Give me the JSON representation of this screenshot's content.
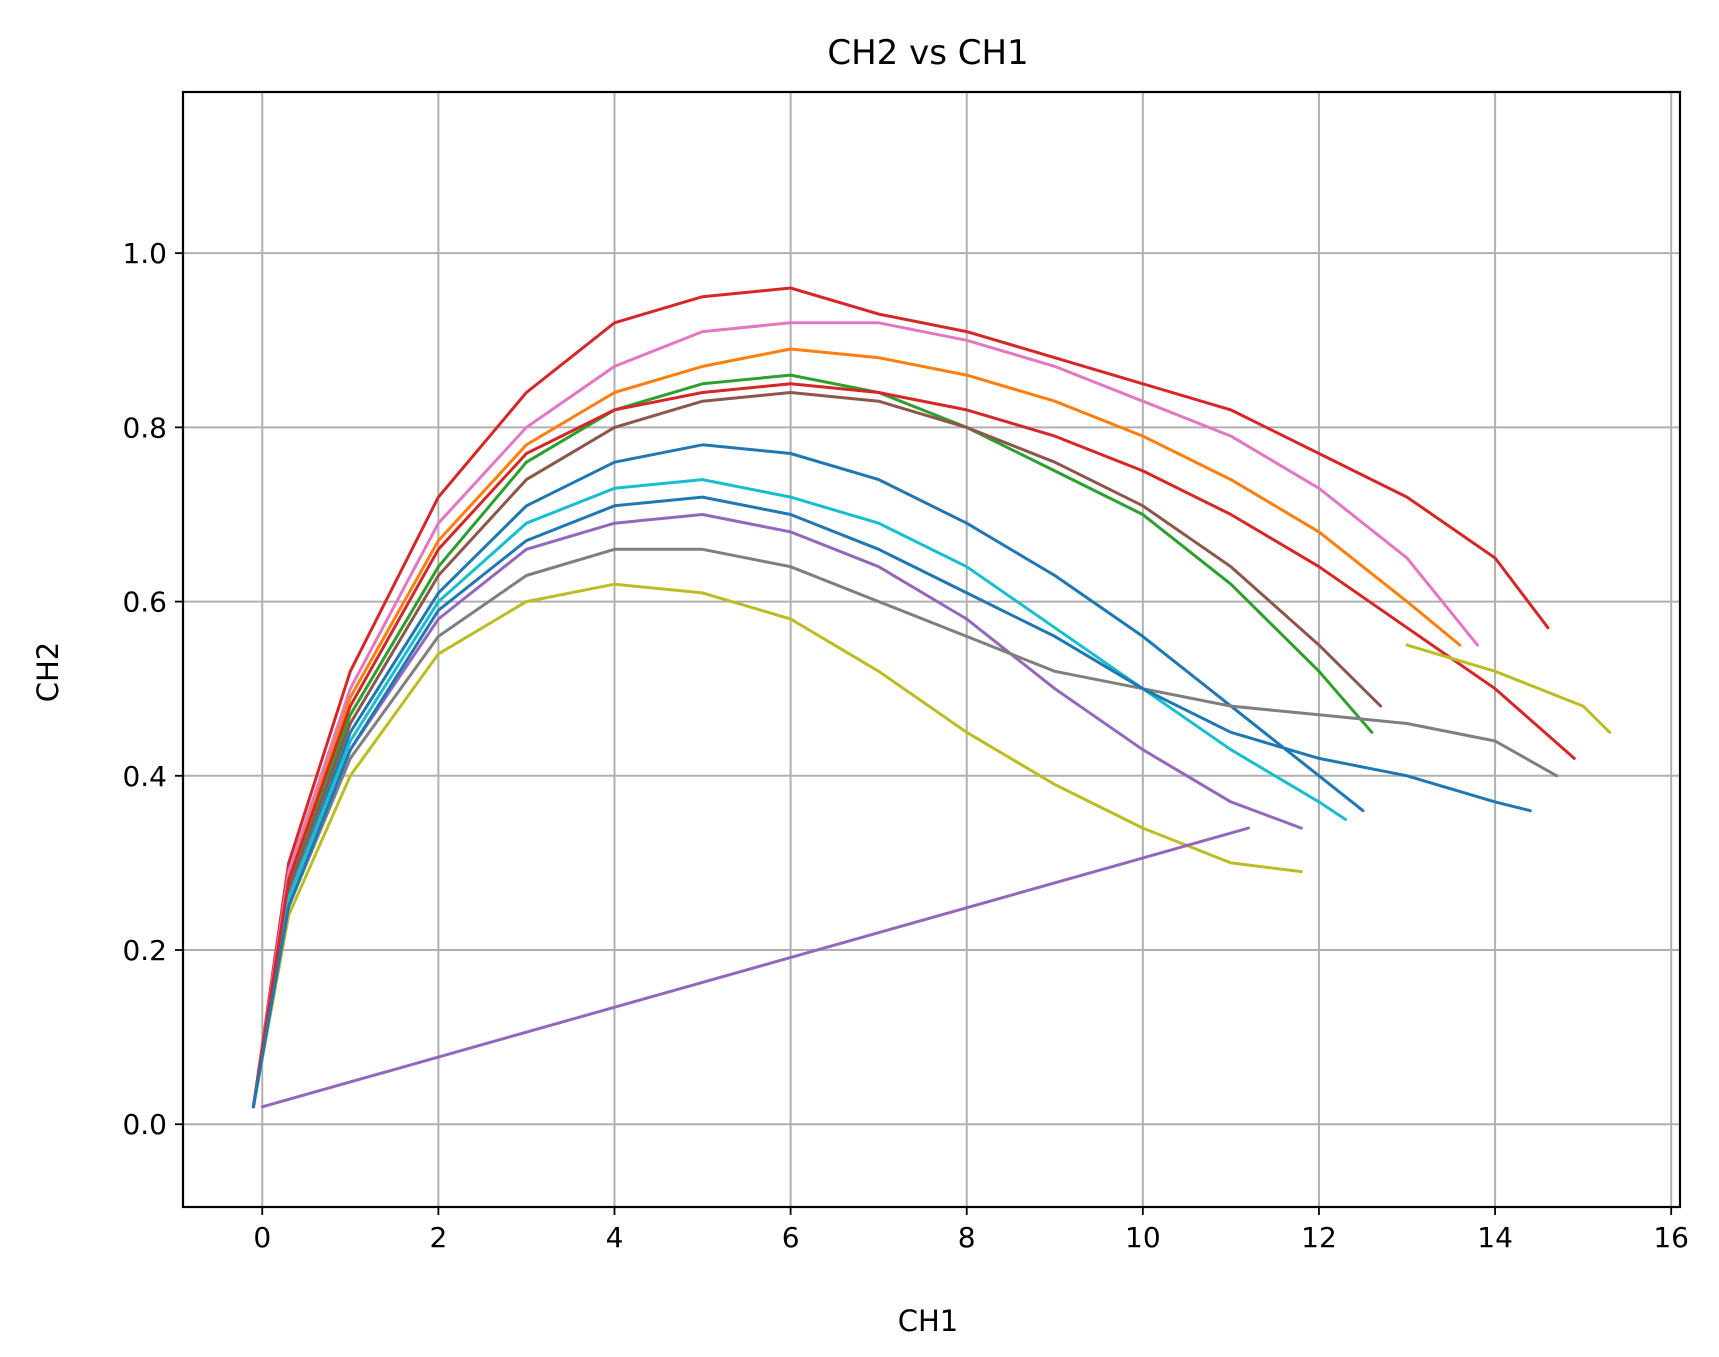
{
  "chart_data": {
    "type": "line",
    "title": "CH2 vs CH1",
    "xlabel": "CH1",
    "ylabel": "CH2",
    "xlim": [
      -0.9,
      16.1
    ],
    "ylim": [
      -0.095,
      1.185
    ],
    "xticks": [
      "0",
      "2",
      "4",
      "6",
      "8",
      "10",
      "12",
      "14",
      "16"
    ],
    "xtick_values": [
      0,
      2,
      4,
      6,
      8,
      10,
      12,
      14,
      16
    ],
    "yticks": [
      "0.0",
      "0.2",
      "0.4",
      "0.6",
      "0.8",
      "1.0"
    ],
    "ytick_values": [
      0.0,
      0.2,
      0.4,
      0.6,
      0.8,
      1.0
    ],
    "grid": true,
    "series": [
      {
        "color": "#d62728",
        "x": [
          -0.1,
          0.3,
          1,
          2,
          3,
          4,
          5,
          6,
          7,
          8,
          9,
          10,
          11,
          12,
          13,
          14,
          14.6
        ],
        "y": [
          0.02,
          0.3,
          0.52,
          0.72,
          0.84,
          0.92,
          0.95,
          0.96,
          0.93,
          0.91,
          0.88,
          0.85,
          0.82,
          0.77,
          0.72,
          0.65,
          0.57
        ]
      },
      {
        "color": "#e377c2",
        "x": [
          -0.1,
          0.3,
          1,
          2,
          3,
          4,
          5,
          6,
          7,
          8,
          9,
          10,
          11,
          12,
          13,
          13.8
        ],
        "y": [
          0.02,
          0.29,
          0.5,
          0.69,
          0.8,
          0.87,
          0.91,
          0.92,
          0.92,
          0.9,
          0.87,
          0.83,
          0.79,
          0.73,
          0.65,
          0.55
        ]
      },
      {
        "color": "#ff7f0e",
        "x": [
          -0.1,
          0.3,
          1,
          2,
          3,
          4,
          5,
          6,
          7,
          8,
          9,
          10,
          11,
          12,
          13,
          13.6
        ],
        "y": [
          0.02,
          0.28,
          0.49,
          0.67,
          0.78,
          0.84,
          0.87,
          0.89,
          0.88,
          0.86,
          0.83,
          0.79,
          0.74,
          0.68,
          0.6,
          0.55
        ]
      },
      {
        "color": "#2ca02c",
        "x": [
          -0.1,
          0.3,
          1,
          2,
          3,
          4,
          5,
          6,
          7,
          8,
          9,
          10,
          11,
          12,
          12.6
        ],
        "y": [
          0.02,
          0.27,
          0.47,
          0.64,
          0.76,
          0.82,
          0.85,
          0.86,
          0.84,
          0.8,
          0.75,
          0.7,
          0.62,
          0.52,
          0.45
        ]
      },
      {
        "color": "#8c564b",
        "x": [
          -0.1,
          0.3,
          1,
          2,
          3,
          4,
          5,
          6,
          7,
          8,
          9,
          10,
          11,
          12,
          12.7
        ],
        "y": [
          0.02,
          0.27,
          0.46,
          0.63,
          0.74,
          0.8,
          0.83,
          0.84,
          0.83,
          0.8,
          0.76,
          0.71,
          0.64,
          0.55,
          0.48
        ]
      },
      {
        "color": "#1f77b4",
        "x": [
          -0.1,
          0.3,
          1,
          2,
          3,
          4,
          5,
          6,
          7,
          8,
          9,
          10,
          11,
          12,
          12.5
        ],
        "y": [
          0.02,
          0.26,
          0.45,
          0.61,
          0.71,
          0.76,
          0.78,
          0.77,
          0.74,
          0.69,
          0.63,
          0.56,
          0.48,
          0.4,
          0.36
        ]
      },
      {
        "color": "#17becf",
        "x": [
          -0.1,
          0.3,
          1,
          2,
          3,
          4,
          5,
          6,
          7,
          8,
          9,
          10,
          11,
          12,
          12.3
        ],
        "y": [
          0.02,
          0.26,
          0.44,
          0.6,
          0.69,
          0.73,
          0.74,
          0.72,
          0.69,
          0.64,
          0.57,
          0.5,
          0.43,
          0.37,
          0.35
        ]
      },
      {
        "color": "#9467bd",
        "x": [
          -0.1,
          0.3,
          1,
          2,
          3,
          4,
          5,
          6,
          7,
          8,
          9,
          10,
          11,
          11.8
        ],
        "y": [
          0.02,
          0.25,
          0.43,
          0.58,
          0.66,
          0.69,
          0.7,
          0.68,
          0.64,
          0.58,
          0.5,
          0.43,
          0.37,
          0.34
        ]
      },
      {
        "color": "#7f7f7f",
        "x": [
          -0.1,
          0.3,
          1,
          2,
          3,
          4,
          5,
          6,
          7,
          8,
          9,
          10,
          11,
          12,
          13,
          14,
          14.7
        ],
        "y": [
          0.02,
          0.25,
          0.42,
          0.56,
          0.63,
          0.66,
          0.66,
          0.64,
          0.6,
          0.56,
          0.52,
          0.5,
          0.48,
          0.47,
          0.46,
          0.44,
          0.4
        ]
      },
      {
        "color": "#bcbd22",
        "x": [
          -0.1,
          0.3,
          1,
          2,
          3,
          4,
          5,
          6,
          7,
          8,
          9,
          10,
          11,
          11.8
        ],
        "y": [
          0.02,
          0.24,
          0.4,
          0.54,
          0.6,
          0.62,
          0.61,
          0.58,
          0.52,
          0.45,
          0.39,
          0.34,
          0.3,
          0.29
        ]
      },
      {
        "color": "#d62728",
        "x": [
          -0.1,
          0.3,
          1,
          2,
          3,
          4,
          5,
          6,
          7,
          8,
          9,
          10,
          11,
          12,
          13,
          14,
          14.9
        ],
        "y": [
          0.02,
          0.28,
          0.48,
          0.66,
          0.77,
          0.82,
          0.84,
          0.85,
          0.84,
          0.82,
          0.79,
          0.75,
          0.7,
          0.64,
          0.57,
          0.5,
          0.42
        ]
      },
      {
        "color": "#1f77b4",
        "x": [
          -0.1,
          0.3,
          1,
          2,
          3,
          4,
          5,
          6,
          7,
          8,
          9,
          10,
          11,
          12,
          13,
          14,
          14.4
        ],
        "y": [
          0.02,
          0.25,
          0.43,
          0.59,
          0.67,
          0.71,
          0.72,
          0.7,
          0.66,
          0.61,
          0.56,
          0.5,
          0.45,
          0.42,
          0.4,
          0.37,
          0.36
        ]
      },
      {
        "color": "#bcbd22",
        "x": [
          13,
          14,
          15,
          15.3
        ],
        "y": [
          0.55,
          0.52,
          0.48,
          0.45
        ]
      },
      {
        "color": "#9467bd",
        "x": [
          0.0,
          11.2
        ],
        "y": [
          0.02,
          0.34
        ]
      }
    ]
  }
}
